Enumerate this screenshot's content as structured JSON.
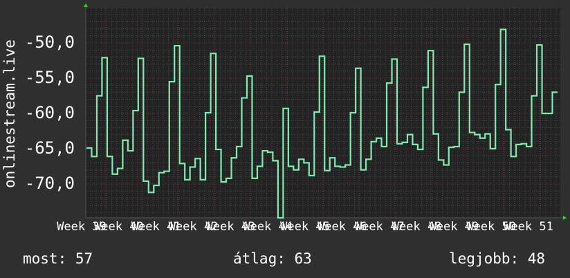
{
  "chart_data": {
    "type": "line",
    "step": true,
    "ylabel": "onlinestream.live",
    "ylim": [
      -74.8,
      -45.1
    ],
    "yticks": [
      -50,
      -55,
      -60,
      -65,
      -70
    ],
    "ytick_labels": [
      "-50,0",
      "-55,0",
      "-60,0",
      "-65,0",
      "-70,0"
    ],
    "xtick_labels": [
      "Week 39",
      "Week 40",
      "Week 41",
      "Week 42",
      "Week 43",
      "Week 44",
      "Week 45",
      "Week 46",
      "Week 47",
      "Week 48",
      "Week 49",
      "Week 50",
      "Week 51"
    ],
    "grid": true,
    "colors": {
      "line": "#7eeab4",
      "background": "#2f2f2f",
      "plot": "#232323",
      "grid": "#4a4a4a",
      "major_grid": "#6e3434",
      "axis_arrow": "#22dd22"
    },
    "values": [
      -64.9,
      -66.1,
      -57.5,
      -52.1,
      -66.1,
      -68.6,
      -67.8,
      -63.8,
      -65.3,
      -59.6,
      -52.2,
      -69.6,
      -71.2,
      -70.2,
      -68.4,
      -68.2,
      -55.5,
      -50.4,
      -67.1,
      -69.4,
      -67.6,
      -66.4,
      -69.4,
      -59.9,
      -51.5,
      -65.1,
      -69.7,
      -69.2,
      -66.3,
      -64.7,
      -57.8,
      -54.7,
      -69.2,
      -67.5,
      -65.3,
      -65.5,
      -66.7,
      -76.0,
      -59.3,
      -67.5,
      -68.0,
      -66.5,
      -67.0,
      -68.8,
      -59.8,
      -51.9,
      -68.1,
      -66.3,
      -67.5,
      -67.6,
      -67.3,
      -59.9,
      -53.6,
      -68.0,
      -66.5,
      -64.0,
      -63.5,
      -64.7,
      -55.7,
      -52.3,
      -64.3,
      -64.1,
      -63.0,
      -64.4,
      -65.1,
      -56.3,
      -51.1,
      -62.9,
      -66.6,
      -67.3,
      -64.8,
      -64.7,
      -57.0,
      -50.2,
      -62.7,
      -63.0,
      -63.5,
      -62.9,
      -65.0,
      -55.9,
      -48.1,
      -62.3,
      -66.1,
      -64.4,
      -64.3,
      -64.7,
      -57.5,
      -50.3,
      -60.0,
      -60.0,
      -57.0
    ]
  },
  "legend": {
    "current": "most: 57",
    "average": "átlag: 63",
    "max": "legjobb: 48"
  }
}
